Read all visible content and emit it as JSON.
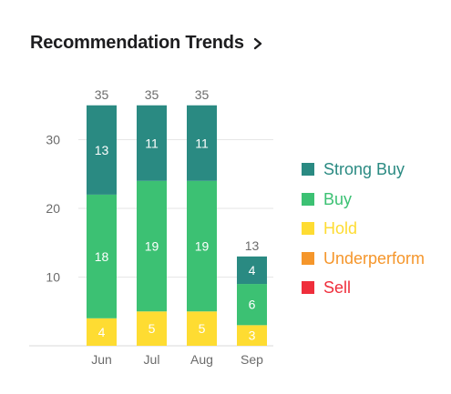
{
  "header": {
    "title": "Recommendation Trends",
    "chevron_icon": "chevron-right-icon"
  },
  "colors": {
    "strong_buy": "#2a8a82",
    "buy": "#3cc173",
    "hold": "#fedc32",
    "underperform": "#f5962b",
    "sell": "#ef2e3b",
    "axis_text": "#6b6b6b",
    "grid": "#e6e6e6",
    "segment_label": "#ffffff"
  },
  "chart_data": {
    "type": "bar",
    "stacked": true,
    "categories": [
      "Jun",
      "Jul",
      "Aug",
      "Sep"
    ],
    "series": [
      {
        "name": "Strong Buy",
        "values": [
          13,
          11,
          11,
          4
        ],
        "color": "#2a8a82"
      },
      {
        "name": "Buy",
        "values": [
          18,
          19,
          19,
          6
        ],
        "color": "#3cc173"
      },
      {
        "name": "Hold",
        "values": [
          4,
          5,
          5,
          3
        ],
        "color": "#fedc32"
      },
      {
        "name": "Underperform",
        "values": [
          0,
          0,
          0,
          0
        ],
        "color": "#f5962b"
      },
      {
        "name": "Sell",
        "values": [
          0,
          0,
          0,
          0
        ],
        "color": "#ef2e3b"
      }
    ],
    "totals": [
      35,
      35,
      35,
      13
    ],
    "yticks": [
      10,
      20,
      30
    ],
    "ylim": [
      0,
      35
    ],
    "grid": true,
    "legend_position": "right",
    "title": "Recommendation Trends",
    "xlabel": "",
    "ylabel": ""
  }
}
